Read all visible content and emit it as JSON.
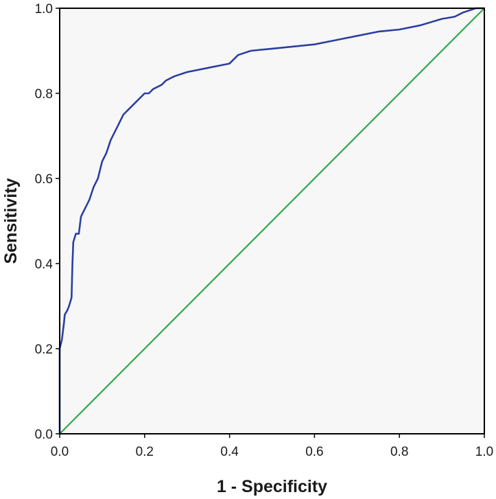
{
  "chart_data": {
    "type": "line",
    "title": "",
    "xlabel": "1 - Specificity",
    "ylabel": "Sensitivity",
    "xlim": [
      0.0,
      1.0
    ],
    "ylim": [
      0.0,
      1.0
    ],
    "x_ticks": [
      "0.0",
      "0.2",
      "0.4",
      "0.6",
      "0.8",
      "1.0"
    ],
    "y_ticks": [
      "0.0",
      "0.2",
      "0.4",
      "0.6",
      "0.8",
      "1.0"
    ],
    "grid": false,
    "legend": "none",
    "plot_background": "#f7f7f7",
    "series": [
      {
        "color": "#2b3fa0",
        "x": [
          0.0,
          0.0,
          0.005,
          0.01,
          0.012,
          0.018,
          0.022,
          0.028,
          0.03,
          0.032,
          0.035,
          0.038,
          0.045,
          0.05,
          0.055,
          0.06,
          0.07,
          0.08,
          0.085,
          0.09,
          0.1,
          0.105,
          0.11,
          0.12,
          0.13,
          0.14,
          0.15,
          0.16,
          0.17,
          0.18,
          0.2,
          0.21,
          0.22,
          0.24,
          0.25,
          0.27,
          0.3,
          0.35,
          0.4,
          0.42,
          0.45,
          0.5,
          0.55,
          0.6,
          0.65,
          0.7,
          0.75,
          0.8,
          0.85,
          0.9,
          0.93,
          0.95,
          0.98,
          1.0
        ],
        "y": [
          0.0,
          0.2,
          0.22,
          0.26,
          0.28,
          0.29,
          0.3,
          0.32,
          0.4,
          0.45,
          0.46,
          0.47,
          0.47,
          0.51,
          0.52,
          0.53,
          0.55,
          0.58,
          0.59,
          0.6,
          0.64,
          0.65,
          0.66,
          0.69,
          0.71,
          0.73,
          0.75,
          0.76,
          0.77,
          0.78,
          0.8,
          0.8,
          0.81,
          0.82,
          0.83,
          0.84,
          0.85,
          0.86,
          0.87,
          0.89,
          0.9,
          0.905,
          0.91,
          0.915,
          0.925,
          0.935,
          0.945,
          0.95,
          0.96,
          0.975,
          0.98,
          0.99,
          1.0,
          1.0
        ]
      },
      {
        "color": "#2ea84a",
        "x": [
          0.0,
          1.0
        ],
        "y": [
          0.0,
          1.0
        ]
      }
    ]
  }
}
